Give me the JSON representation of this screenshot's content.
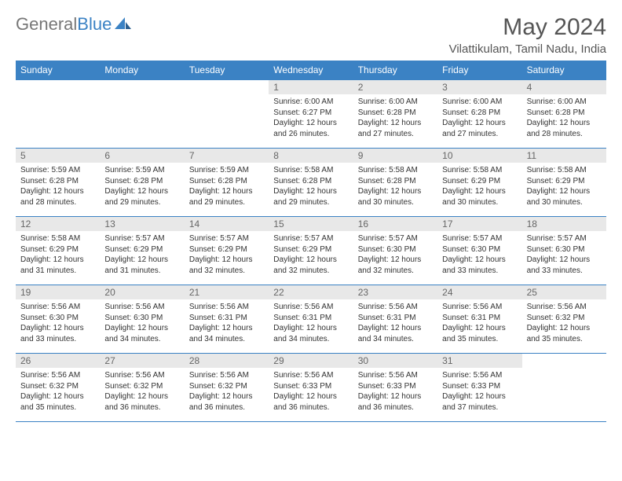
{
  "brand": {
    "part1": "General",
    "part2": "Blue"
  },
  "colors": {
    "accent": "#3b82c4",
    "header_row_bg": "#3b82c4",
    "header_row_text": "#ffffff",
    "daynum_bg": "#e8e8e8",
    "daynum_text": "#666666",
    "body_text": "#333333",
    "title_text": "#555555",
    "background": "#ffffff"
  },
  "title": "May 2024",
  "location": "Vilattikulam, Tamil Nadu, India",
  "day_names": [
    "Sunday",
    "Monday",
    "Tuesday",
    "Wednesday",
    "Thursday",
    "Friday",
    "Saturday"
  ],
  "layout": {
    "columns": 7,
    "rows": 5,
    "first_day_column_index": 3,
    "type": "calendar-month"
  },
  "weeks": [
    [
      null,
      null,
      null,
      {
        "n": "1",
        "sunrise": "6:00 AM",
        "sunset": "6:27 PM",
        "daylight": "12 hours and 26 minutes."
      },
      {
        "n": "2",
        "sunrise": "6:00 AM",
        "sunset": "6:28 PM",
        "daylight": "12 hours and 27 minutes."
      },
      {
        "n": "3",
        "sunrise": "6:00 AM",
        "sunset": "6:28 PM",
        "daylight": "12 hours and 27 minutes."
      },
      {
        "n": "4",
        "sunrise": "6:00 AM",
        "sunset": "6:28 PM",
        "daylight": "12 hours and 28 minutes."
      }
    ],
    [
      {
        "n": "5",
        "sunrise": "5:59 AM",
        "sunset": "6:28 PM",
        "daylight": "12 hours and 28 minutes."
      },
      {
        "n": "6",
        "sunrise": "5:59 AM",
        "sunset": "6:28 PM",
        "daylight": "12 hours and 29 minutes."
      },
      {
        "n": "7",
        "sunrise": "5:59 AM",
        "sunset": "6:28 PM",
        "daylight": "12 hours and 29 minutes."
      },
      {
        "n": "8",
        "sunrise": "5:58 AM",
        "sunset": "6:28 PM",
        "daylight": "12 hours and 29 minutes."
      },
      {
        "n": "9",
        "sunrise": "5:58 AM",
        "sunset": "6:28 PM",
        "daylight": "12 hours and 30 minutes."
      },
      {
        "n": "10",
        "sunrise": "5:58 AM",
        "sunset": "6:29 PM",
        "daylight": "12 hours and 30 minutes."
      },
      {
        "n": "11",
        "sunrise": "5:58 AM",
        "sunset": "6:29 PM",
        "daylight": "12 hours and 30 minutes."
      }
    ],
    [
      {
        "n": "12",
        "sunrise": "5:58 AM",
        "sunset": "6:29 PM",
        "daylight": "12 hours and 31 minutes."
      },
      {
        "n": "13",
        "sunrise": "5:57 AM",
        "sunset": "6:29 PM",
        "daylight": "12 hours and 31 minutes."
      },
      {
        "n": "14",
        "sunrise": "5:57 AM",
        "sunset": "6:29 PM",
        "daylight": "12 hours and 32 minutes."
      },
      {
        "n": "15",
        "sunrise": "5:57 AM",
        "sunset": "6:29 PM",
        "daylight": "12 hours and 32 minutes."
      },
      {
        "n": "16",
        "sunrise": "5:57 AM",
        "sunset": "6:30 PM",
        "daylight": "12 hours and 32 minutes."
      },
      {
        "n": "17",
        "sunrise": "5:57 AM",
        "sunset": "6:30 PM",
        "daylight": "12 hours and 33 minutes."
      },
      {
        "n": "18",
        "sunrise": "5:57 AM",
        "sunset": "6:30 PM",
        "daylight": "12 hours and 33 minutes."
      }
    ],
    [
      {
        "n": "19",
        "sunrise": "5:56 AM",
        "sunset": "6:30 PM",
        "daylight": "12 hours and 33 minutes."
      },
      {
        "n": "20",
        "sunrise": "5:56 AM",
        "sunset": "6:30 PM",
        "daylight": "12 hours and 34 minutes."
      },
      {
        "n": "21",
        "sunrise": "5:56 AM",
        "sunset": "6:31 PM",
        "daylight": "12 hours and 34 minutes."
      },
      {
        "n": "22",
        "sunrise": "5:56 AM",
        "sunset": "6:31 PM",
        "daylight": "12 hours and 34 minutes."
      },
      {
        "n": "23",
        "sunrise": "5:56 AM",
        "sunset": "6:31 PM",
        "daylight": "12 hours and 34 minutes."
      },
      {
        "n": "24",
        "sunrise": "5:56 AM",
        "sunset": "6:31 PM",
        "daylight": "12 hours and 35 minutes."
      },
      {
        "n": "25",
        "sunrise": "5:56 AM",
        "sunset": "6:32 PM",
        "daylight": "12 hours and 35 minutes."
      }
    ],
    [
      {
        "n": "26",
        "sunrise": "5:56 AM",
        "sunset": "6:32 PM",
        "daylight": "12 hours and 35 minutes."
      },
      {
        "n": "27",
        "sunrise": "5:56 AM",
        "sunset": "6:32 PM",
        "daylight": "12 hours and 36 minutes."
      },
      {
        "n": "28",
        "sunrise": "5:56 AM",
        "sunset": "6:32 PM",
        "daylight": "12 hours and 36 minutes."
      },
      {
        "n": "29",
        "sunrise": "5:56 AM",
        "sunset": "6:33 PM",
        "daylight": "12 hours and 36 minutes."
      },
      {
        "n": "30",
        "sunrise": "5:56 AM",
        "sunset": "6:33 PM",
        "daylight": "12 hours and 36 minutes."
      },
      {
        "n": "31",
        "sunrise": "5:56 AM",
        "sunset": "6:33 PM",
        "daylight": "12 hours and 37 minutes."
      },
      null
    ]
  ],
  "labels": {
    "sunrise_prefix": "Sunrise: ",
    "sunset_prefix": "Sunset: ",
    "daylight_prefix": "Daylight: "
  }
}
